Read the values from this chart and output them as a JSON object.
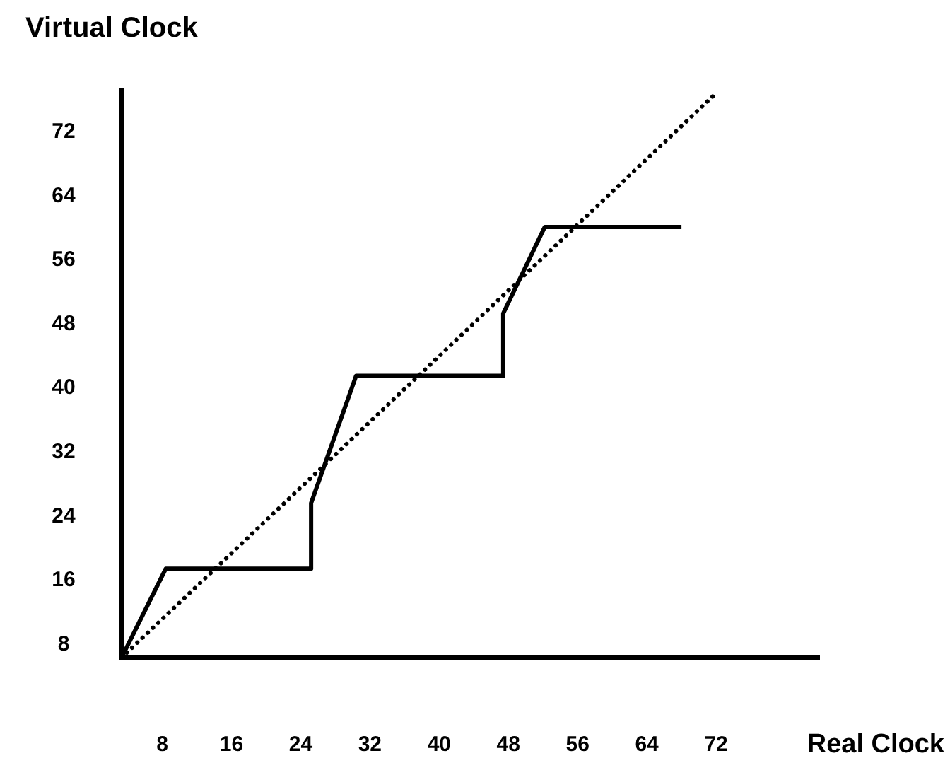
{
  "chart_data": {
    "type": "line",
    "xlabel": "Real Clock",
    "ylabel": "Virtual Clock",
    "xlim": [
      3.3,
      84
    ],
    "ylim": [
      6.2,
      77.4
    ],
    "xticks": [
      8,
      16,
      24,
      32,
      40,
      48,
      56,
      64,
      72
    ],
    "yticks": [
      8,
      16,
      24,
      32,
      40,
      48,
      56,
      64,
      72
    ],
    "grid": false,
    "series": [
      {
        "color": "#000000",
        "line_style": "solid",
        "x": [
          3.3,
          8.4,
          25.2,
          25.2,
          30.4,
          47.4,
          47.4,
          52.2,
          68
        ],
        "values": [
          6.2,
          17.3,
          17.3,
          25.5,
          41.4,
          41.4,
          49.2,
          60,
          60
        ]
      },
      {
        "color": "#000000",
        "line_style": "dotted",
        "x": [
          3.3,
          71.7
        ],
        "values": [
          6.2,
          76.4
        ]
      }
    ]
  }
}
